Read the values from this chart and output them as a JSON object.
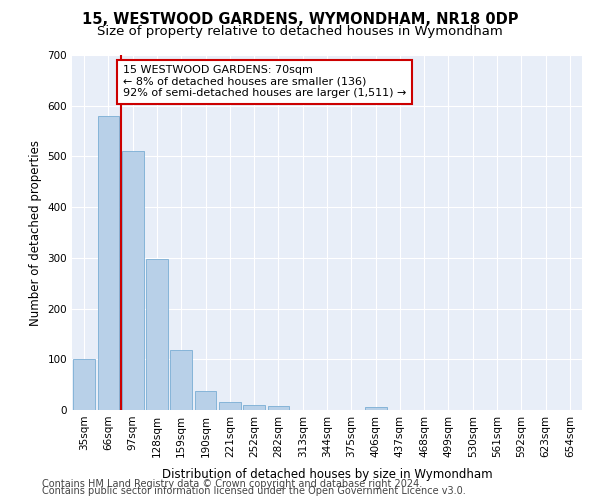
{
  "title": "15, WESTWOOD GARDENS, WYMONDHAM, NR18 0DP",
  "subtitle": "Size of property relative to detached houses in Wymondham",
  "xlabel": "Distribution of detached houses by size in Wymondham",
  "ylabel": "Number of detached properties",
  "categories": [
    "35sqm",
    "66sqm",
    "97sqm",
    "128sqm",
    "159sqm",
    "190sqm",
    "221sqm",
    "252sqm",
    "282sqm",
    "313sqm",
    "344sqm",
    "375sqm",
    "406sqm",
    "437sqm",
    "468sqm",
    "499sqm",
    "530sqm",
    "561sqm",
    "592sqm",
    "623sqm",
    "654sqm"
  ],
  "values": [
    100,
    580,
    510,
    298,
    118,
    37,
    15,
    10,
    7,
    0,
    0,
    0,
    5,
    0,
    0,
    0,
    0,
    0,
    0,
    0,
    0
  ],
  "bar_color": "#b8d0e8",
  "bar_edge_color": "#7aadd4",
  "highlight_line_color": "#cc0000",
  "annotation_text": "15 WESTWOOD GARDENS: 70sqm\n← 8% of detached houses are smaller (136)\n92% of semi-detached houses are larger (1,511) →",
  "annotation_box_color": "#ffffff",
  "annotation_box_edge_color": "#cc0000",
  "ylim": [
    0,
    700
  ],
  "yticks": [
    0,
    100,
    200,
    300,
    400,
    500,
    600,
    700
  ],
  "footer1": "Contains HM Land Registry data © Crown copyright and database right 2024.",
  "footer2": "Contains public sector information licensed under the Open Government Licence v3.0.",
  "background_color": "#ffffff",
  "plot_bg_color": "#e8eef8",
  "grid_color": "#ffffff",
  "title_fontsize": 10.5,
  "subtitle_fontsize": 9.5,
  "axis_label_fontsize": 8.5,
  "tick_fontsize": 7.5,
  "annotation_fontsize": 8,
  "footer_fontsize": 7
}
